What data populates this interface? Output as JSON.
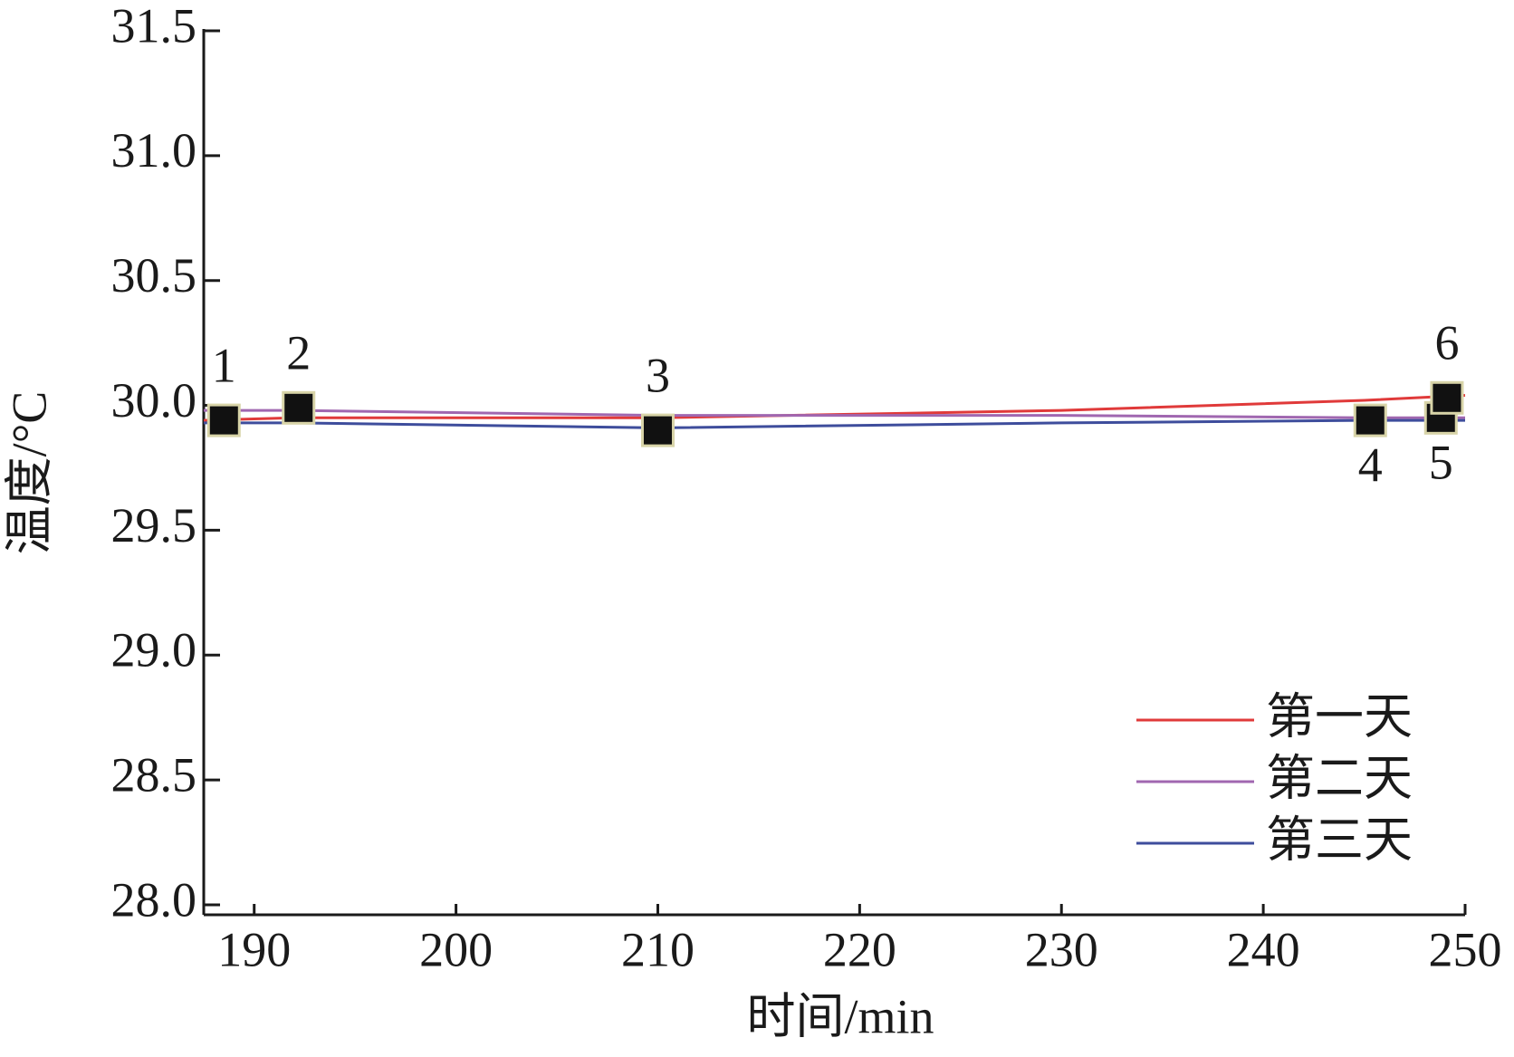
{
  "chart_data": {
    "type": "line",
    "xlabel": "时间/min",
    "ylabel": "温度/°C",
    "xlim": [
      187.5,
      250
    ],
    "ylim": [
      27.96,
      31.5
    ],
    "xticks": [
      190,
      200,
      210,
      220,
      230,
      240,
      250
    ],
    "yticks": [
      {
        "value": 28,
        "label": "28.0"
      },
      28.5,
      {
        "value": 29,
        "label": "29.0"
      },
      29.5,
      {
        "value": 30,
        "label": "30.0"
      },
      30.5,
      {
        "value": 31,
        "label": "31.0"
      },
      31.5
    ],
    "legend": "lower right",
    "series": [
      {
        "name": "第一天",
        "color": "#e03a3a",
        "x": [
          187.5,
          192,
          210,
          230,
          245,
          250
        ],
        "values": [
          29.94,
          29.95,
          29.95,
          29.98,
          30.02,
          30.04
        ]
      },
      {
        "name": "第二天",
        "color": "#a067b0",
        "x": [
          187.5,
          192,
          210,
          230,
          245,
          250
        ],
        "values": [
          29.98,
          29.98,
          29.96,
          29.96,
          29.95,
          29.95
        ]
      },
      {
        "name": "第三天",
        "color": "#3e4d9c",
        "x": [
          187.5,
          192,
          210,
          230,
          245,
          250
        ],
        "values": [
          29.93,
          29.93,
          29.91,
          29.93,
          29.94,
          29.94
        ]
      }
    ],
    "points": {
      "color": "#111111",
      "x": [
        188.5,
        192.2,
        210,
        245.3,
        248.8,
        249.1
      ],
      "values": [
        29.94,
        29.99,
        29.9,
        29.94,
        29.95,
        30.03
      ],
      "labels": [
        "1",
        "2",
        "3",
        "4",
        "5",
        "6"
      ]
    }
  }
}
